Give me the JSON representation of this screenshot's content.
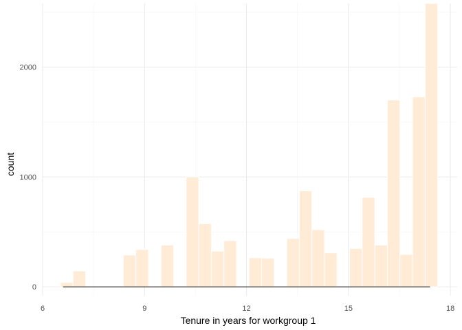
{
  "chart_data": {
    "type": "bar",
    "subtype": "histogram",
    "xlabel": "Tenure in years for workgroup 1",
    "ylabel": "count",
    "xlim": [
      6,
      18.2
    ],
    "ylim": [
      -80,
      2580
    ],
    "x_ticks": [
      6,
      9,
      12,
      15,
      18
    ],
    "x_tick_labels": [
      "6",
      "9",
      "12",
      "15",
      "18"
    ],
    "y_ticks": [
      0,
      1000,
      2000
    ],
    "y_tick_labels": [
      "0",
      "1000",
      "2000"
    ],
    "grid": true,
    "bin_width": 0.37,
    "bins": [
      {
        "x": 6.71,
        "count": 40
      },
      {
        "x": 7.08,
        "count": 145
      },
      {
        "x": 8.56,
        "count": 290
      },
      {
        "x": 8.93,
        "count": 340
      },
      {
        "x": 9.67,
        "count": 380
      },
      {
        "x": 10.41,
        "count": 1000
      },
      {
        "x": 10.78,
        "count": 575
      },
      {
        "x": 11.15,
        "count": 325
      },
      {
        "x": 11.52,
        "count": 420
      },
      {
        "x": 12.26,
        "count": 265
      },
      {
        "x": 12.63,
        "count": 260
      },
      {
        "x": 13.37,
        "count": 440
      },
      {
        "x": 13.74,
        "count": 875
      },
      {
        "x": 14.11,
        "count": 520
      },
      {
        "x": 14.48,
        "count": 310
      },
      {
        "x": 15.22,
        "count": 350
      },
      {
        "x": 15.59,
        "count": 815
      },
      {
        "x": 15.96,
        "count": 380
      },
      {
        "x": 16.33,
        "count": 1700
      },
      {
        "x": 16.7,
        "count": 295
      },
      {
        "x": 17.07,
        "count": 1730
      },
      {
        "x": 17.44,
        "count": 2580
      }
    ],
    "baseline_segments": [
      [
        6.6,
        8.4
      ],
      [
        8.4,
        17.4
      ]
    ],
    "colors": {
      "bar_fill": "#ffebd6",
      "bar_stroke": "#ffffff",
      "grid_major": "#ebebeb",
      "grid_minor": "#f3f3f3",
      "baseline": "#000000"
    }
  }
}
